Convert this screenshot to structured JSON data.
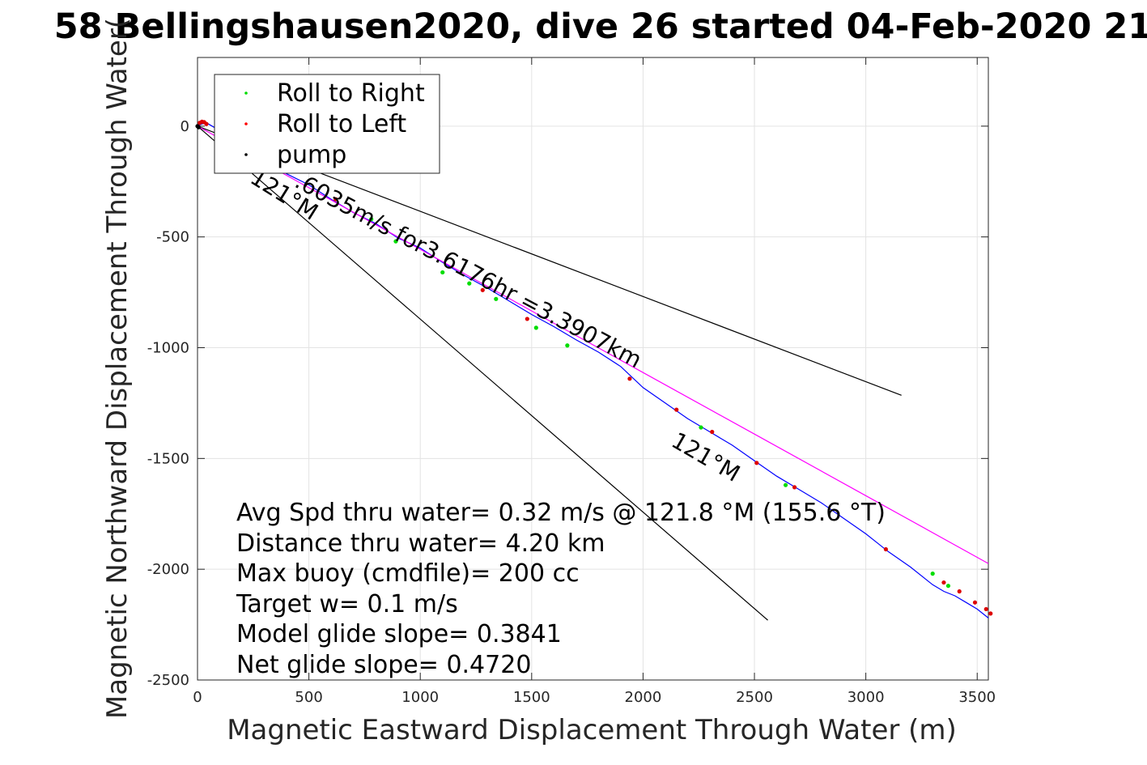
{
  "chart_data": {
    "type": "line",
    "title": "58 Bellingshausen2020, dive 26 started 04-Feb-2020 21",
    "xlabel": "Magnetic Eastward Displacement Through Water (m)",
    "ylabel": "Magnetic Northward Displacement Through Water(",
    "xlim": [
      0,
      3550
    ],
    "ylim": [
      -2500,
      310
    ],
    "xticks": [
      0,
      500,
      1000,
      1500,
      2000,
      2500,
      3000,
      3500
    ],
    "yticks": [
      0,
      -500,
      -1000,
      -1500,
      -2000,
      -2500
    ],
    "grid": true,
    "legend_position": "top-left",
    "legend": [
      {
        "label": "Roll to Right",
        "color": "#00dd00"
      },
      {
        "label": "Roll to Left",
        "color": "#ff0000"
      },
      {
        "label": "pump",
        "color": "#000000"
      }
    ],
    "series": [
      {
        "name": "track",
        "color": "#0000ff",
        "x": [
          0,
          20,
          40,
          100,
          200,
          300,
          400,
          500,
          600,
          700,
          800,
          900,
          1000,
          1100,
          1200,
          1300,
          1400,
          1500,
          1600,
          1700,
          1800,
          1900,
          2000,
          2100,
          2200,
          2300,
          2400,
          2500,
          2600,
          2700,
          2800,
          2900,
          3000,
          3050,
          3100,
          3200,
          3300,
          3350,
          3400,
          3450,
          3500,
          3550
        ],
        "y": [
          0,
          10,
          15,
          -20,
          -95,
          -155,
          -215,
          -265,
          -330,
          -390,
          -440,
          -505,
          -550,
          -615,
          -675,
          -730,
          -790,
          -850,
          -905,
          -965,
          -1020,
          -1085,
          -1180,
          -1250,
          -1320,
          -1380,
          -1440,
          -1510,
          -1580,
          -1640,
          -1700,
          -1770,
          -1840,
          -1880,
          -1920,
          -1990,
          -2070,
          -2100,
          -2120,
          -2150,
          -2180,
          -2220
        ]
      },
      {
        "name": "heading",
        "color": "#ff00ff",
        "x": [
          0,
          500,
          1000,
          1500,
          2000,
          2500,
          3000,
          3550
        ],
        "y": [
          0,
          -278,
          -556,
          -834,
          -1112,
          -1390,
          -1668,
          -1974
        ]
      }
    ],
    "markers": {
      "roll_right": {
        "x": [
          780,
          890,
          1100,
          1220,
          1340,
          1520,
          1660,
          2260,
          2640,
          3300,
          3370
        ],
        "y": [
          -420,
          -520,
          -660,
          -710,
          -780,
          -910,
          -990,
          -1360,
          -1620,
          -2020,
          -2075
        ]
      },
      "roll_left": {
        "x": [
          10,
          20,
          30,
          40,
          620,
          1280,
          1480,
          1940,
          2150,
          2310,
          2510,
          2680,
          3090,
          3350,
          3420,
          3490,
          3540,
          3560
        ],
        "y": [
          15,
          20,
          18,
          10,
          -330,
          -740,
          -870,
          -1140,
          -1280,
          -1380,
          -1520,
          -1630,
          -1910,
          -2060,
          -2100,
          -2150,
          -2180,
          -2200
        ]
      },
      "pump": {
        "x": [
          0,
          5
        ],
        "y": [
          0,
          -5
        ]
      }
    },
    "reference_lines": [
      {
        "x": [
          0,
          3160
        ],
        "y": [
          0,
          -1215
        ]
      },
      {
        "x": [
          0,
          2560
        ],
        "y": [
          0,
          -2230
        ]
      }
    ],
    "annotations": [
      {
        "text": "121°M",
        "x": 230,
        "y": -250,
        "rotation": 32
      },
      {
        "text": ".6035m/s for3.6176hr =3.3907km",
        "x": 430,
        "y": -270,
        "rotation": 28
      },
      {
        "text": "121°M",
        "x": 2120,
        "y": -1440,
        "rotation": 30
      }
    ],
    "stats_lines": [
      "Avg Spd thru water=  0.32 m/s @ 121.8 °M (155.6 °T)",
      "Distance thru water=  4.20 km",
      "Max buoy (cmdfile)= 200 cc",
      "Target w= 0.1 m/s",
      "Model glide slope= 0.3841",
      "Net glide slope= 0.4720"
    ]
  }
}
